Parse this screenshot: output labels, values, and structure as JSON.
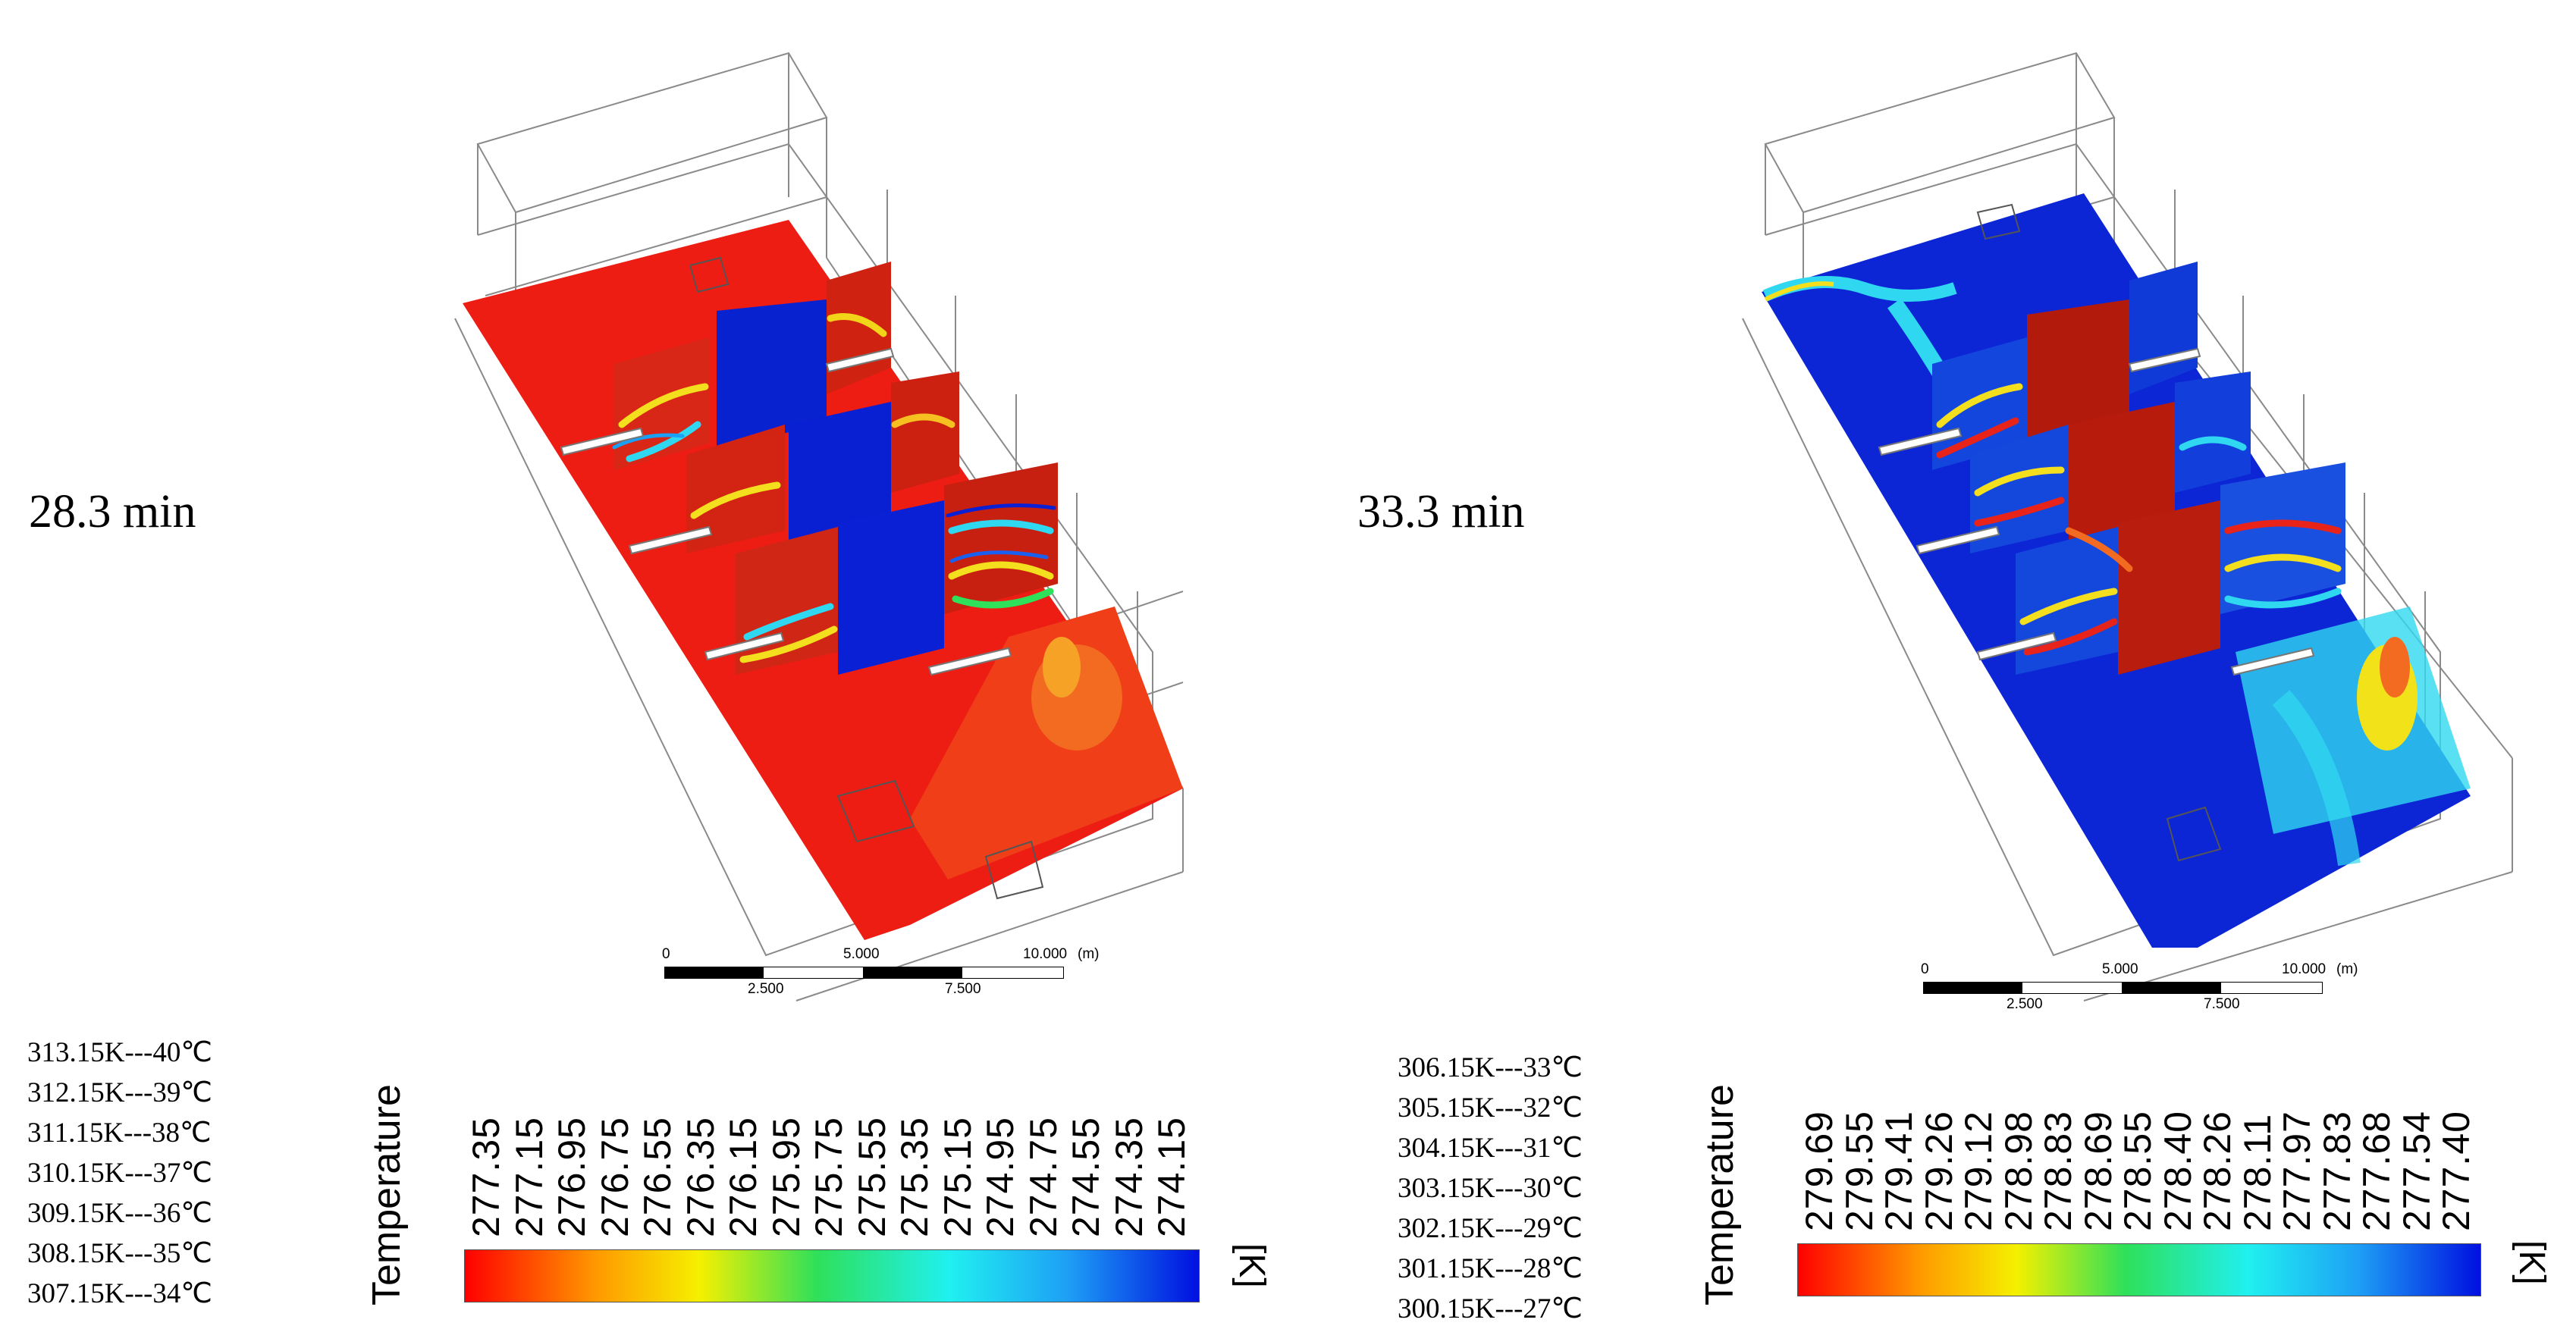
{
  "panels": [
    {
      "time_label": "28.3 min",
      "legend": {
        "title": "Temperature",
        "unit": "[K]",
        "ticks": [
          "277.35",
          "277.15",
          "276.95",
          "276.75",
          "276.55",
          "276.35",
          "276.15",
          "275.95",
          "275.75",
          "275.55",
          "275.35",
          "275.15",
          "274.95",
          "274.75",
          "274.55",
          "274.35",
          "274.15"
        ]
      },
      "kelvin_to_celsius": [
        "313.15K---40℃",
        "312.15K---39℃",
        "311.15K---38℃",
        "310.15K---37℃",
        "309.15K---36℃",
        "308.15K---35℃",
        "307.15K---34℃"
      ],
      "scale_bar": {
        "top_labels": [
          "0",
          "5.000",
          "10.000"
        ],
        "bottom_labels": [
          "2.500",
          "7.500"
        ],
        "unit": "(m)"
      }
    },
    {
      "time_label": "33.3 min",
      "legend": {
        "title": "Temperature",
        "unit": "[K]",
        "ticks": [
          "279.69",
          "279.55",
          "279.41",
          "279.26",
          "279.12",
          "278.98",
          "278.83",
          "278.69",
          "278.55",
          "278.40",
          "278.26",
          "278.11",
          "277.97",
          "277.83",
          "277.68",
          "277.54",
          "277.40"
        ]
      },
      "kelvin_to_celsius": [
        "306.15K---33℃",
        "305.15K---32℃",
        "304.15K---31℃",
        "303.15K---30℃",
        "302.15K---29℃",
        "301.15K---28℃",
        "300.15K---27℃"
      ],
      "scale_bar": {
        "top_labels": [
          "0",
          "5.000",
          "10.000"
        ],
        "bottom_labels": [
          "2.500",
          "7.500"
        ],
        "unit": "(m)"
      }
    }
  ],
  "colors": {
    "hot": "#e8241a",
    "dark_red": "#b01508",
    "cold": "#0a1ed8",
    "cyan": "#2fd8f0",
    "yellow": "#f2e21a",
    "green": "#2ee05a",
    "wireframe": "#888888"
  }
}
